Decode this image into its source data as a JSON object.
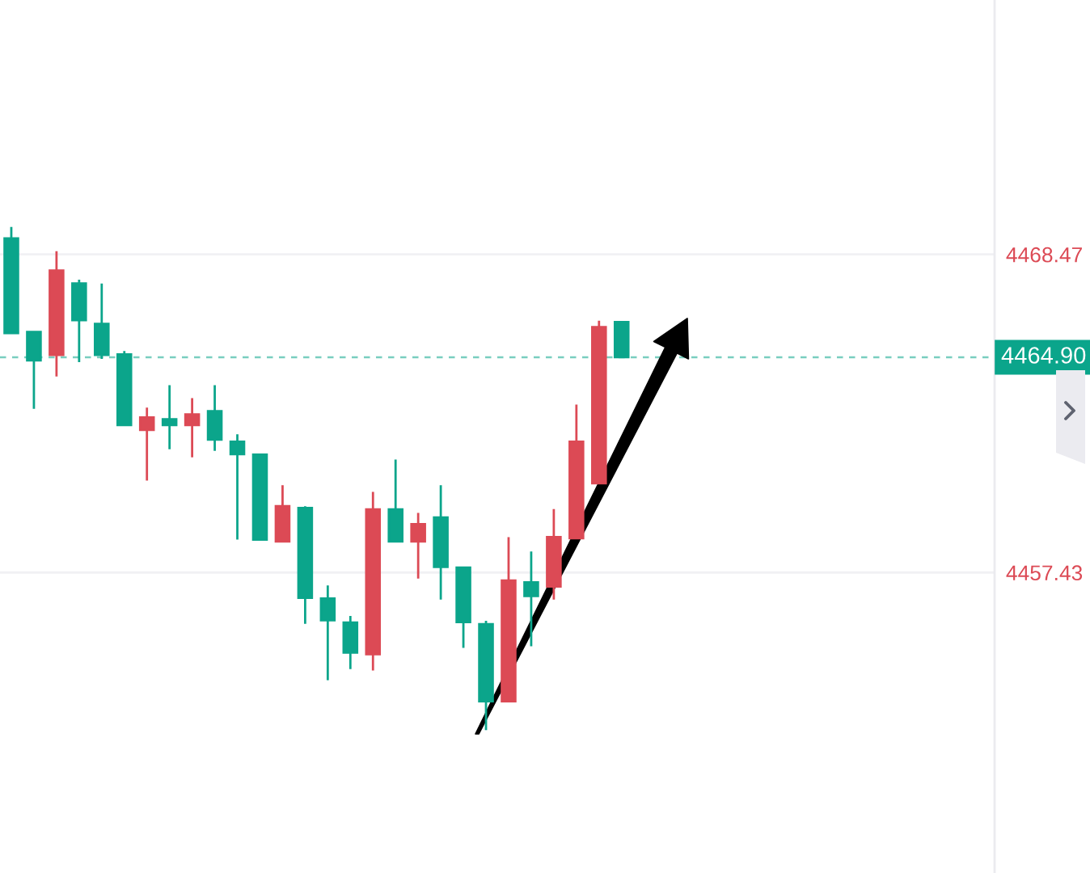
{
  "chart_data": {
    "type": "candlestick",
    "categories": [
      null,
      null,
      null,
      null,
      null,
      null,
      null,
      null,
      null,
      null,
      null,
      null,
      null,
      null,
      null,
      null,
      null,
      null,
      null,
      null,
      null,
      null,
      null,
      null,
      null,
      null,
      null,
      null,
      null,
      null,
      null,
      null,
      null,
      null,
      null,
      null,
      null,
      null,
      null,
      null,
      null,
      null,
      null,
      null
    ],
    "ohlc": [
      [
        4469.03,
        4469.42,
        4465.74,
        4465.74
      ],
      [
        4465.78,
        4465.78,
        4463.11,
        4464.79
      ],
      [
        4464.98,
        4468.58,
        4464.23,
        4467.91
      ],
      [
        4467.46,
        4467.59,
        4464.73,
        4466.19
      ],
      [
        4466.06,
        4467.46,
        4464.84,
        4464.98
      ],
      [
        4465.0,
        4465.12,
        4462.55,
        4462.55
      ],
      [
        4462.38,
        4463.15,
        4460.62,
        4462.81
      ],
      [
        4462.75,
        4463.93,
        4461.71,
        4462.55
      ],
      [
        4462.55,
        4463.48,
        4461.43,
        4462.92
      ],
      [
        4463.03,
        4463.93,
        4461.65,
        4462.04
      ],
      [
        4461.97,
        4462.23,
        4458.57,
        4461.54
      ],
      [
        4461.52,
        4461.52,
        4458.57,
        4458.57
      ],
      [
        4458.51,
        4460.46,
        4458.51,
        4459.73
      ],
      [
        4459.67,
        4459.73,
        4455.65,
        4456.55
      ],
      [
        4456.53,
        4456.98,
        4453.69,
        4455.77
      ],
      [
        4455.69,
        4455.92,
        4454.08,
        4454.65
      ],
      [
        4454.59,
        4460.23,
        4454.03,
        4459.62
      ],
      [
        4459.62,
        4461.35,
        4458.51,
        4458.51
      ],
      [
        4458.51,
        4459.5,
        4457.22,
        4459.11
      ],
      [
        4459.34,
        4460.46,
        4456.49,
        4457.62
      ],
      [
        4457.6,
        4457.6,
        4454.81,
        4455.71
      ],
      [
        4455.64,
        4455.75,
        4451.96,
        4452.96
      ],
      [
        4452.96,
        4458.66,
        4452.96,
        4457.15
      ],
      [
        4457.09,
        4458.16,
        4454.87,
        4456.61
      ],
      [
        4456.94,
        4459.63,
        4456.49,
        4458.66
      ],
      [
        4458.62,
        4463.26,
        4458.62,
        4461.97
      ],
      [
        4460.53,
        4466.17,
        4460.53,
        4465.95
      ],
      [
        4466.12,
        4466.12,
        4464.9,
        4464.9
      ],
      null,
      null,
      null,
      null,
      null,
      null,
      null,
      null,
      null,
      null,
      null,
      null,
      null,
      null,
      null,
      null
    ],
    "colors": [
      "#0ba58b",
      "#0ba58b",
      "#dc4a55",
      "#0ba58b",
      "#0ba58b",
      "#0ba58b",
      "#dc4a55",
      "#0ba58b",
      "#dc4a55",
      "#0ba58b",
      "#0ba58b",
      "#0ba58b",
      "#dc4a55",
      "#0ba58b",
      "#0ba58b",
      "#0ba58b",
      "#dc4a55",
      "#0ba58b",
      "#dc4a55",
      "#0ba58b",
      "#0ba58b",
      "#0ba58b",
      "#dc4a55",
      "#0ba58b",
      "#dc4a55",
      "#dc4a55",
      "#dc4a55",
      "#0ba58b",
      null,
      null,
      null,
      null,
      null,
      null,
      null,
      null,
      null,
      null,
      null,
      null,
      null,
      null,
      null,
      null
    ],
    "ylim": [
      4447.0,
      4477.3
    ],
    "yticks": [
      4468.47,
      4457.43
    ],
    "grid": "y",
    "tick_labels": "y",
    "ref_lines": [
      {
        "axis": "y",
        "value": 4464.9,
        "label": "4464.90",
        "color": "#0ba58b",
        "line_style": "dashed"
      }
    ]
  }
}
